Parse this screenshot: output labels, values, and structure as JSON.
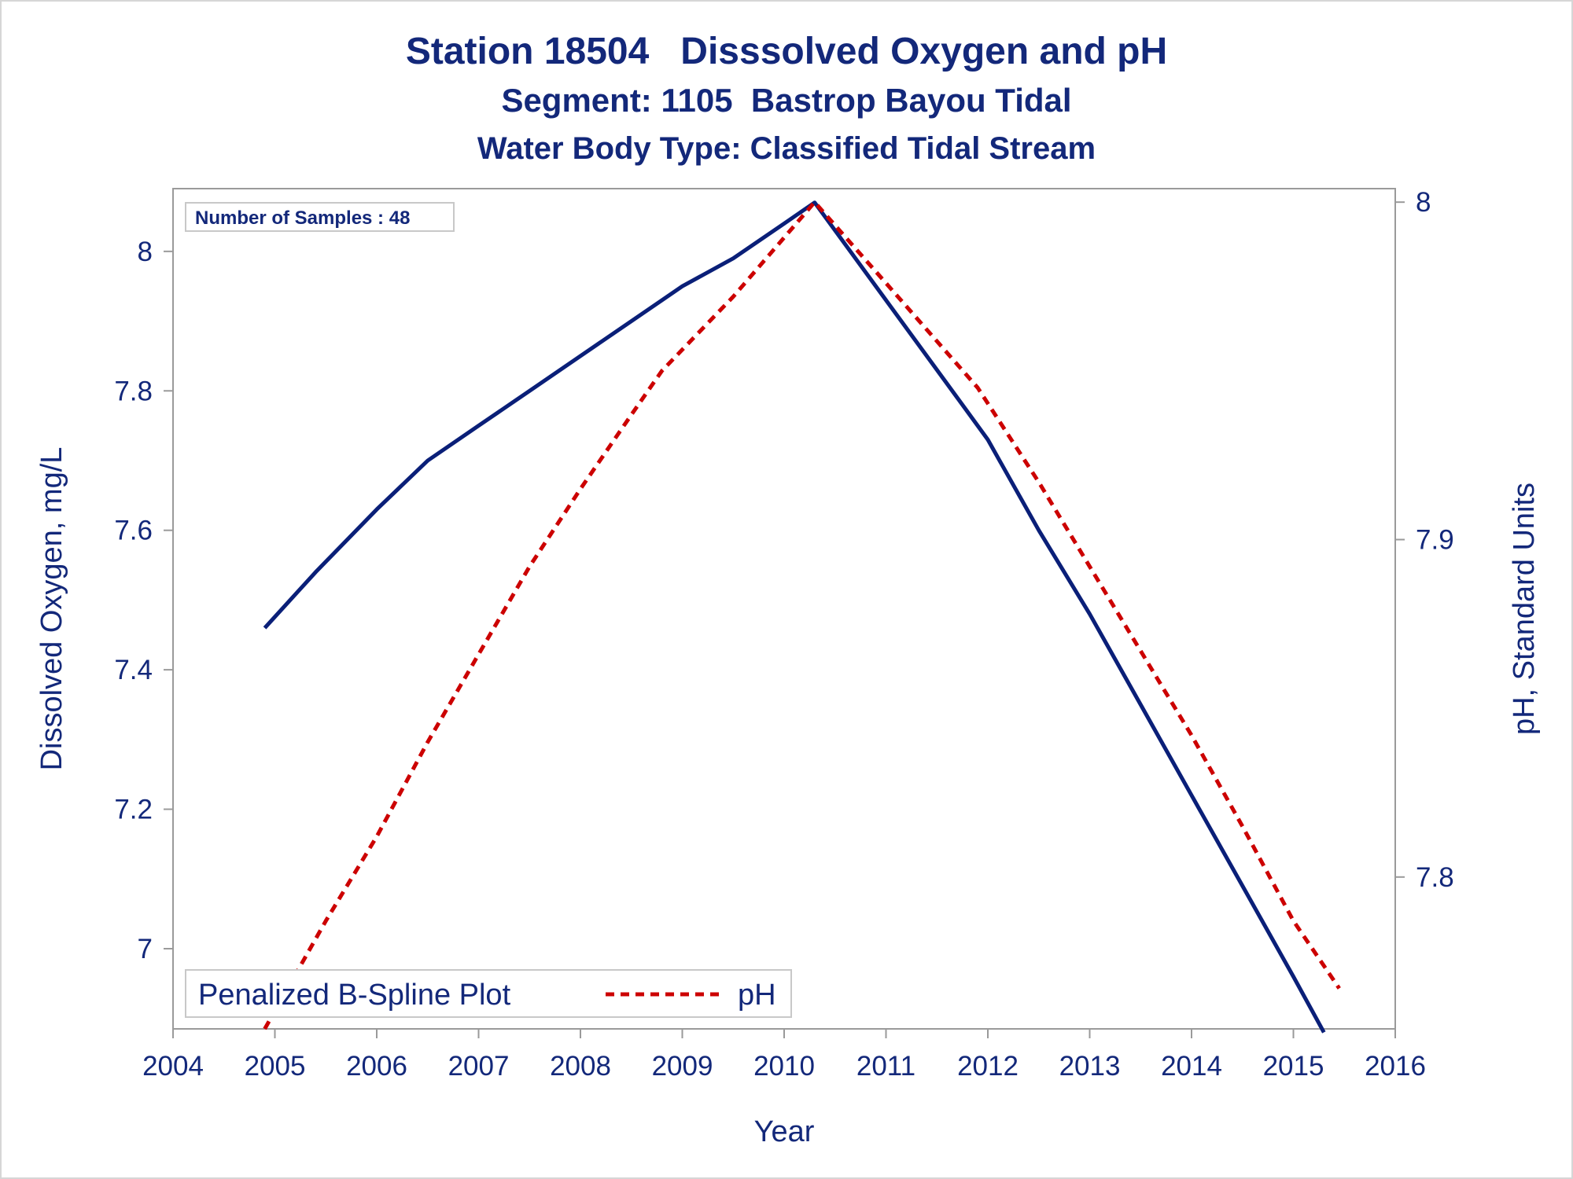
{
  "titles": {
    "line1": "Station 18504   Disssolved Oxygen and pH",
    "line2": "Segment: 1105  Bastrop Bayou Tidal",
    "line3": "Water Body Type: Classified Tidal Stream"
  },
  "inset_label": "Number of Samples : 48",
  "legend": {
    "title": "Penalized B-Spline Plot",
    "entry": "pH"
  },
  "colors": {
    "text": "#13287a",
    "do_line": "#0a1f78",
    "ph_line": "#cc0000",
    "axis": "#9a9a9a"
  },
  "chart_data": {
    "type": "line",
    "xlabel": "Year",
    "ylabel": "Dissolved Oxygen, mg/L",
    "y2label": "pH, Standard Units",
    "xlim": [
      2004,
      2016
    ],
    "ylim": [
      6.885,
      8.09
    ],
    "y2lim": [
      7.755,
      8.004
    ],
    "xticks": [
      "2004",
      "2005",
      "2006",
      "2007",
      "2008",
      "2009",
      "2010",
      "2011",
      "2012",
      "2013",
      "2014",
      "2015",
      "2016"
    ],
    "yticks": [
      "7",
      "7.2",
      "7.4",
      "7.6",
      "7.8",
      "8"
    ],
    "y2ticks": [
      "7.8",
      "7.9",
      "8"
    ],
    "grid": false,
    "legend_position": "bottom-left",
    "series": [
      {
        "name": "",
        "axis": "left",
        "style": "solid",
        "x": [
          2004.9,
          2005.4,
          2006.0,
          2006.5,
          2007.0,
          2007.5,
          2008.0,
          2008.5,
          2009.0,
          2009.5,
          2010.0,
          2010.3,
          2011.0,
          2011.7,
          2012.0,
          2012.5,
          2013.0,
          2013.5,
          2014.0,
          2014.5,
          2015.0,
          2015.3
        ],
        "y": [
          7.46,
          7.54,
          7.63,
          7.7,
          7.75,
          7.8,
          7.85,
          7.9,
          7.95,
          7.99,
          8.04,
          8.07,
          7.93,
          7.79,
          7.73,
          7.6,
          7.48,
          7.35,
          7.22,
          7.09,
          6.96,
          6.88
        ]
      },
      {
        "name": "pH",
        "axis": "right",
        "style": "dashed",
        "x": [
          2004.9,
          2005.5,
          2006.0,
          2006.5,
          2007.0,
          2007.5,
          2008.0,
          2008.5,
          2008.8,
          2009.5,
          2010.3,
          2011.0,
          2011.9,
          2012.5,
          2013.0,
          2013.5,
          2014.0,
          2014.5,
          2015.0,
          2015.45
        ],
        "y": [
          7.755,
          7.787,
          7.812,
          7.84,
          7.866,
          7.892,
          7.915,
          7.937,
          7.95,
          7.972,
          8.0,
          7.976,
          7.945,
          7.917,
          7.892,
          7.867,
          7.842,
          7.815,
          7.787,
          7.767
        ]
      }
    ]
  }
}
